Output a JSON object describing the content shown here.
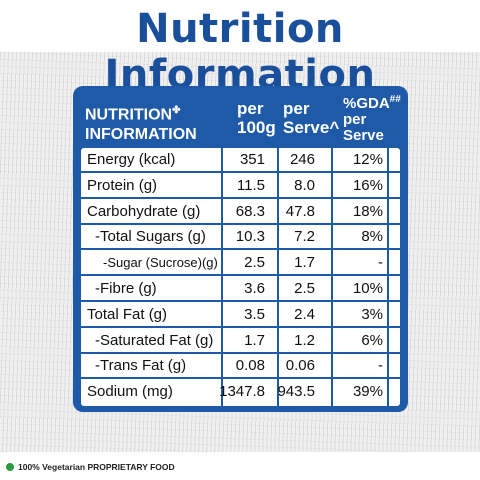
{
  "title": "Nutrition Information",
  "table": {
    "header": {
      "label_line1": "NUTRITION",
      "label_sup": "✤",
      "label_line2": "INFORMATION",
      "col1_line1": "per",
      "col1_line2": "100g",
      "col2_line1": "per",
      "col2_line2": "Serve^",
      "col3_line1": "%GDA",
      "col3_sup": "##",
      "col3_line2": "per",
      "col3_line3": "Serve"
    },
    "rows": [
      {
        "name": "Energy (kcal)",
        "per100g": "351",
        "perServe": "246",
        "gda": "12%"
      },
      {
        "name": "Protein (g)",
        "per100g": "11.5",
        "perServe": "8.0",
        "gda": "16%"
      },
      {
        "name": "Carbohydrate (g)",
        "per100g": "68.3",
        "perServe": "47.8",
        "gda": "18%"
      },
      {
        "name": " -Total Sugars (g)",
        "per100g": "10.3",
        "perServe": "7.2",
        "gda": "8%"
      },
      {
        "name": "  -Sugar (Sucrose)(g)",
        "per100g": "2.5",
        "perServe": "1.7",
        "gda": "-"
      },
      {
        "name": " -Fibre (g)",
        "per100g": "3.6",
        "perServe": "2.5",
        "gda": "10%"
      },
      {
        "name": "Total Fat (g)",
        "per100g": "3.5",
        "perServe": "2.4",
        "gda": "3%"
      },
      {
        "name": " -Saturated Fat (g)",
        "per100g": "1.7",
        "perServe": "1.2",
        "gda": "6%"
      },
      {
        "name": " -Trans Fat (g)",
        "per100g": "0.08",
        "perServe": "0.06",
        "gda": "-"
      },
      {
        "name": "Sodium (mg)",
        "per100g": "1347.8",
        "perServe": "943.5",
        "gda": "39%"
      }
    ]
  },
  "footer": {
    "text": "100% Vegetarian PROPRIETARY FOOD",
    "veg_mark_color": "#2a9a3a"
  },
  "colors": {
    "title": "#1a4f9c",
    "panel": "#1e5aa8"
  }
}
